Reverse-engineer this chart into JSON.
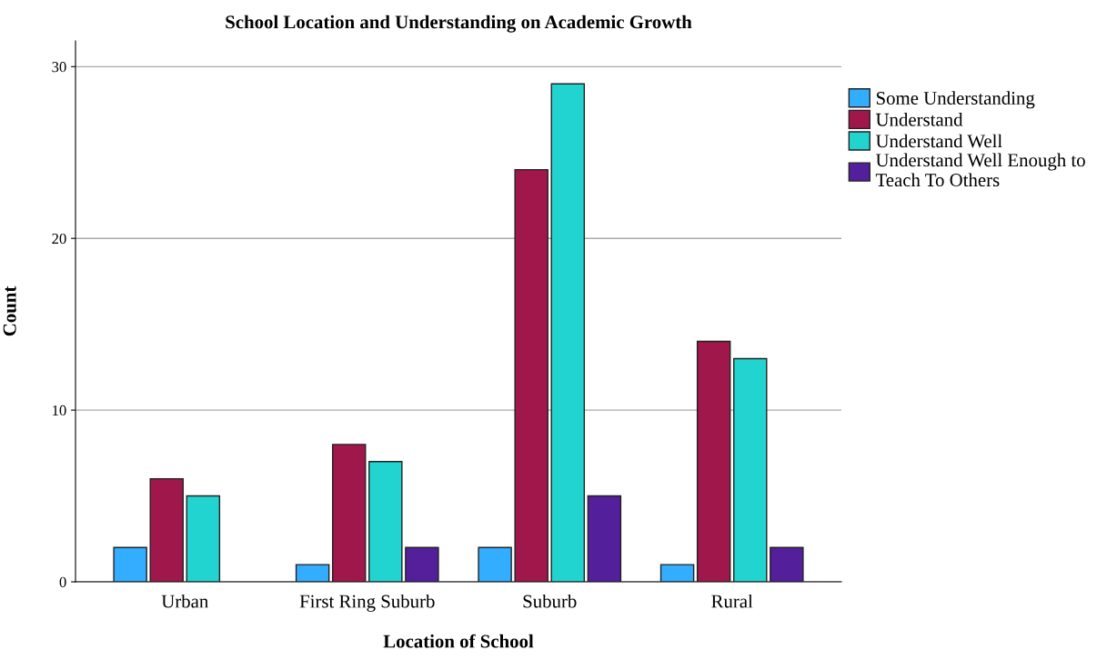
{
  "chart_data": {
    "type": "bar",
    "title": "School Location and Understanding on Academic Growth",
    "xlabel": "Location of School",
    "ylabel": "Count",
    "categories": [
      "Urban",
      "First Ring Suburb",
      "Suburb",
      "Rural"
    ],
    "series": [
      {
        "name": "Some Understanding",
        "color": "#33adff",
        "values": [
          2,
          1,
          2,
          1
        ]
      },
      {
        "name": "Understand",
        "color": "#a0174b",
        "values": [
          6,
          8,
          24,
          14
        ]
      },
      {
        "name": "Understand Well",
        "color": "#21d4d0",
        "values": [
          5,
          7,
          29,
          13
        ]
      },
      {
        "name": "Understand Well Enough to Teach To Others",
        "color": "#531f9a",
        "values": [
          null,
          2,
          5,
          2
        ]
      }
    ],
    "ylim": [
      0,
      31.5
    ],
    "yticks": [
      0,
      10,
      20,
      30
    ],
    "grid": "y",
    "legend": "top right"
  }
}
